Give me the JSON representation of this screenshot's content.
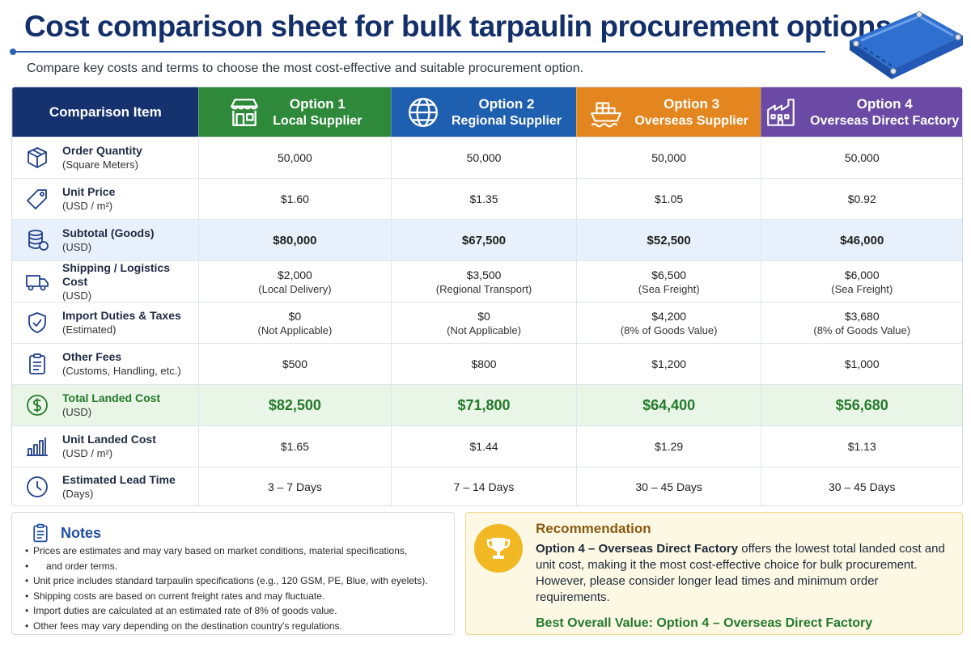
{
  "header": {
    "title": "Cost comparison sheet for bulk tarpaulin procurement options",
    "subtitle": "Compare key costs and terms to choose the most cost-effective and suitable procurement option."
  },
  "table": {
    "corner_label": "Comparison Item",
    "options": [
      {
        "number": "Option 1",
        "name": "Local Supplier",
        "color": "#2e8a3a",
        "icon": "storefront-icon"
      },
      {
        "number": "Option 2",
        "name": "Regional Supplier",
        "color": "#1f5fb0",
        "icon": "globe-icon"
      },
      {
        "number": "Option 3",
        "name": "Overseas Supplier",
        "color": "#e4861f",
        "icon": "cargo-ship-icon"
      },
      {
        "number": "Option 4",
        "name": "Overseas Direct Factory",
        "color": "#6a4aa4",
        "icon": "factory-icon"
      }
    ],
    "rows": [
      {
        "label": "Order Quantity",
        "unit": "(Square Meters)",
        "icon": "box-icon",
        "values": [
          "50,000",
          "50,000",
          "50,000",
          "50,000"
        ],
        "notes": [
          "",
          "",
          "",
          ""
        ]
      },
      {
        "label": "Unit Price",
        "unit": "(USD / m²)",
        "icon": "price-tag-icon",
        "values": [
          "$1.60",
          "$1.35",
          "$1.05",
          "$0.92"
        ],
        "notes": [
          "",
          "",
          "",
          ""
        ]
      },
      {
        "label": "Subtotal (Goods)",
        "unit": "(USD)",
        "icon": "coin-stack-icon",
        "values": [
          "$80,000",
          "$67,500",
          "$52,500",
          "$46,000"
        ],
        "notes": [
          "",
          "",
          "",
          ""
        ]
      },
      {
        "label": "Shipping / Logistics Cost",
        "unit": "(USD)",
        "icon": "truck-icon",
        "values": [
          "$2,000",
          "$3,500",
          "$6,500",
          "$6,000"
        ],
        "notes": [
          "(Local Delivery)",
          "(Regional Transport)",
          "(Sea Freight)",
          "(Sea Freight)"
        ]
      },
      {
        "label": "Import Duties & Taxes",
        "unit": "(Estimated)",
        "icon": "shield-check-icon",
        "values": [
          "$0",
          "$0",
          "$4,200",
          "$3,680"
        ],
        "notes": [
          "(Not Applicable)",
          "(Not Applicable)",
          "(8% of Goods Value)",
          "(8% of Goods Value)"
        ]
      },
      {
        "label": "Other Fees",
        "unit": "(Customs, Handling, etc.)",
        "icon": "clipboard-icon",
        "values": [
          "$500",
          "$800",
          "$1,200",
          "$1,000"
        ],
        "notes": [
          "",
          "",
          "",
          ""
        ]
      },
      {
        "label": "Total Landed Cost",
        "unit": "(USD)",
        "icon": "dollar-circle-icon",
        "values": [
          "$82,500",
          "$71,800",
          "$64,400",
          "$56,680"
        ],
        "notes": [
          "",
          "",
          "",
          ""
        ]
      },
      {
        "label": "Unit Landed Cost",
        "unit": "(USD / m²)",
        "icon": "bar-chart-icon",
        "values": [
          "$1.65",
          "$1.44",
          "$1.29",
          "$1.13"
        ],
        "notes": [
          "",
          "",
          "",
          ""
        ]
      },
      {
        "label": "Estimated Lead Time",
        "unit": "(Days)",
        "icon": "clock-icon",
        "values": [
          "3 – 7 Days",
          "7 – 14 Days",
          "30 – 45 Days",
          "30 – 45 Days"
        ],
        "notes": [
          "",
          "",
          "",
          ""
        ]
      }
    ]
  },
  "notes": {
    "title": "Notes",
    "items": [
      "Prices are estimates and may vary based on market conditions, material specifications,",
      "and order terms.",
      "Unit price includes standard tarpaulin specifications (e.g., 120 GSM, PE, Blue, with eyelets).",
      "Shipping costs are based on current freight rates and may fluctuate.",
      "Import duties are calculated at an estimated rate of 8% of goods value.",
      "Other fees may vary depending on the destination country's regulations."
    ]
  },
  "recommendation": {
    "title": "Recommendation",
    "highlight": "Option 4 – Overseas Direct Factory",
    "body": " offers the lowest total landed cost and unit cost, making it the most cost-effective choice for bulk procurement. However, please consider longer lead times and minimum order requirements.",
    "best_value": "Best Overall Value: Option 4 – Overseas Direct Factory"
  },
  "colors": {
    "title": "#14306b",
    "subtotal_row": "#e8f1fb",
    "total_row": "#e9f5e6",
    "total_text": "#237a2c",
    "recommendation_bg": "#fdf8e4"
  }
}
